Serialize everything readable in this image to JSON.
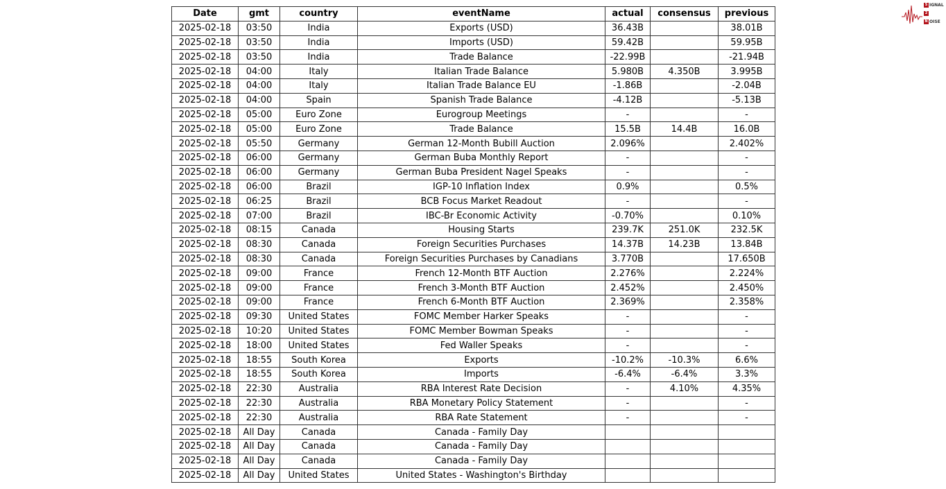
{
  "logo": {
    "text": "SIGNAL 2 NOISE",
    "color": "#b3131b"
  },
  "table": {
    "columns": [
      "Date",
      "gmt",
      "country",
      "eventName",
      "actual",
      "consensus",
      "previous"
    ],
    "rows": [
      [
        "2025-02-18",
        "03:50",
        "India",
        "Exports (USD)",
        "36.43B",
        "",
        "38.01B"
      ],
      [
        "2025-02-18",
        "03:50",
        "India",
        "Imports (USD)",
        "59.42B",
        "",
        "59.95B"
      ],
      [
        "2025-02-18",
        "03:50",
        "India",
        "Trade Balance",
        "-22.99B",
        "",
        "-21.94B"
      ],
      [
        "2025-02-18",
        "04:00",
        "Italy",
        "Italian Trade Balance",
        "5.980B",
        "4.350B",
        "3.995B"
      ],
      [
        "2025-02-18",
        "04:00",
        "Italy",
        "Italian Trade Balance EU",
        "-1.86B",
        "",
        "-2.04B"
      ],
      [
        "2025-02-18",
        "04:00",
        "Spain",
        "Spanish Trade Balance",
        "-4.12B",
        "",
        "-5.13B"
      ],
      [
        "2025-02-18",
        "05:00",
        "Euro Zone",
        "Eurogroup Meetings",
        "-",
        "",
        "-"
      ],
      [
        "2025-02-18",
        "05:00",
        "Euro Zone",
        "Trade Balance",
        "15.5B",
        "14.4B",
        "16.0B"
      ],
      [
        "2025-02-18",
        "05:50",
        "Germany",
        "German 12-Month Bubill Auction",
        "2.096%",
        "",
        "2.402%"
      ],
      [
        "2025-02-18",
        "06:00",
        "Germany",
        "German Buba Monthly Report",
        "-",
        "",
        "-"
      ],
      [
        "2025-02-18",
        "06:00",
        "Germany",
        "German Buba President Nagel Speaks",
        "-",
        "",
        "-"
      ],
      [
        "2025-02-18",
        "06:00",
        "Brazil",
        "IGP-10 Inflation Index",
        "0.9%",
        "",
        "0.5%"
      ],
      [
        "2025-02-18",
        "06:25",
        "Brazil",
        "BCB Focus Market Readout",
        "-",
        "",
        "-"
      ],
      [
        "2025-02-18",
        "07:00",
        "Brazil",
        "IBC-Br Economic Activity",
        "-0.70%",
        "",
        "0.10%"
      ],
      [
        "2025-02-18",
        "08:15",
        "Canada",
        "Housing Starts",
        "239.7K",
        "251.0K",
        "232.5K"
      ],
      [
        "2025-02-18",
        "08:30",
        "Canada",
        "Foreign Securities Purchases",
        "14.37B",
        "14.23B",
        "13.84B"
      ],
      [
        "2025-02-18",
        "08:30",
        "Canada",
        "Foreign Securities Purchases by Canadians",
        "3.770B",
        "",
        "17.650B"
      ],
      [
        "2025-02-18",
        "09:00",
        "France",
        "French 12-Month BTF Auction",
        "2.276%",
        "",
        "2.224%"
      ],
      [
        "2025-02-18",
        "09:00",
        "France",
        "French 3-Month BTF Auction",
        "2.452%",
        "",
        "2.450%"
      ],
      [
        "2025-02-18",
        "09:00",
        "France",
        "French 6-Month BTF Auction",
        "2.369%",
        "",
        "2.358%"
      ],
      [
        "2025-02-18",
        "09:30",
        "United States",
        "FOMC Member Harker Speaks",
        "-",
        "",
        "-"
      ],
      [
        "2025-02-18",
        "10:20",
        "United States",
        "FOMC Member Bowman Speaks",
        "-",
        "",
        "-"
      ],
      [
        "2025-02-18",
        "18:00",
        "United States",
        "Fed Waller Speaks",
        "-",
        "",
        "-"
      ],
      [
        "2025-02-18",
        "18:55",
        "South Korea",
        "Exports",
        "-10.2%",
        "-10.3%",
        "6.6%"
      ],
      [
        "2025-02-18",
        "18:55",
        "South Korea",
        "Imports",
        "-6.4%",
        "-6.4%",
        "3.3%"
      ],
      [
        "2025-02-18",
        "22:30",
        "Australia",
        "RBA Interest Rate Decision",
        "-",
        "4.10%",
        "4.35%"
      ],
      [
        "2025-02-18",
        "22:30",
        "Australia",
        "RBA Monetary Policy Statement",
        "-",
        "",
        "-"
      ],
      [
        "2025-02-18",
        "22:30",
        "Australia",
        "RBA Rate Statement",
        "-",
        "",
        "-"
      ],
      [
        "2025-02-18",
        "All Day",
        "Canada",
        "Canada - Family Day",
        "",
        "",
        ""
      ],
      [
        "2025-02-18",
        "All Day",
        "Canada",
        "Canada - Family Day",
        "",
        "",
        ""
      ],
      [
        "2025-02-18",
        "All Day",
        "Canada",
        "Canada - Family Day",
        "",
        "",
        ""
      ],
      [
        "2025-02-18",
        "All Day",
        "United States",
        "United States - Washington's Birthday",
        "",
        "",
        ""
      ]
    ]
  }
}
